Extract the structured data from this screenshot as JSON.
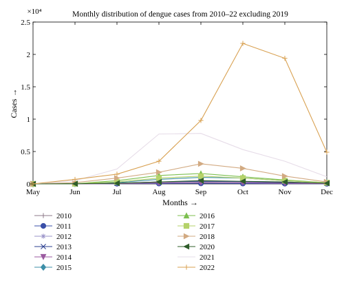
{
  "chart_data": {
    "type": "line",
    "title": "Monthly distribution of dengue cases from 2010–22 excluding 2019",
    "xlabel": "Months →",
    "ylabel": "Cases →",
    "y_exponent_label": "×10⁴",
    "ylim": [
      0,
      25000
    ],
    "y_ticks": [
      0,
      5000,
      10000,
      15000,
      20000,
      25000
    ],
    "y_tick_labels": [
      "0",
      "0.5",
      "1",
      "1.5",
      "2",
      "2.5"
    ],
    "categories": [
      "May",
      "Jun",
      "Jul",
      "Aug",
      "Sep",
      "Oct",
      "Nov",
      "Dec"
    ],
    "grid": false,
    "legend_position": "bottom, two columns",
    "series": [
      {
        "name": "2010",
        "color": "#8c7a88",
        "marker": "plus",
        "values": [
          0,
          20,
          50,
          100,
          150,
          120,
          80,
          40
        ]
      },
      {
        "name": "2011",
        "color": "#3a4fa8",
        "marker": "circle",
        "values": [
          0,
          10,
          30,
          60,
          80,
          60,
          40,
          20
        ]
      },
      {
        "name": "2012",
        "color": "#9a93c8",
        "marker": "asterisk",
        "values": [
          0,
          15,
          60,
          150,
          250,
          200,
          150,
          50
        ]
      },
      {
        "name": "2013",
        "color": "#2b3f8f",
        "marker": "x",
        "values": [
          0,
          20,
          100,
          300,
          400,
          350,
          200,
          100
        ]
      },
      {
        "name": "2014",
        "color": "#9b5aa0",
        "marker": "triangle-down",
        "values": [
          0,
          10,
          50,
          150,
          200,
          180,
          100,
          50
        ]
      },
      {
        "name": "2015",
        "color": "#3d8fa8",
        "marker": "diamond",
        "values": [
          0,
          30,
          200,
          700,
          1000,
          900,
          500,
          200
        ]
      },
      {
        "name": "2016",
        "color": "#7cbf4e",
        "marker": "triangle-up",
        "values": [
          0,
          40,
          500,
          1300,
          1600,
          1100,
          600,
          200
        ]
      },
      {
        "name": "2017",
        "color": "#b5d26a",
        "marker": "square",
        "values": [
          0,
          30,
          300,
          900,
          1200,
          900,
          500,
          200
        ]
      },
      {
        "name": "2018",
        "color": "#d2aa82",
        "marker": "triangle-right",
        "values": [
          0,
          200,
          900,
          1800,
          3100,
          2400,
          1200,
          300
        ]
      },
      {
        "name": "2020",
        "color": "#2f5d2a",
        "marker": "triangle-left",
        "values": [
          0,
          20,
          100,
          300,
          500,
          400,
          300,
          100
        ]
      },
      {
        "name": "2021",
        "color": "#e6dce8",
        "marker": "none",
        "values": [
          0,
          500,
          2300,
          7700,
          7800,
          5300,
          3500,
          1100
        ]
      },
      {
        "name": "2022",
        "color": "#d8a050",
        "marker": "plus",
        "values": [
          0,
          700,
          1500,
          3500,
          9800,
          21700,
          19400,
          4900
        ]
      }
    ]
  }
}
